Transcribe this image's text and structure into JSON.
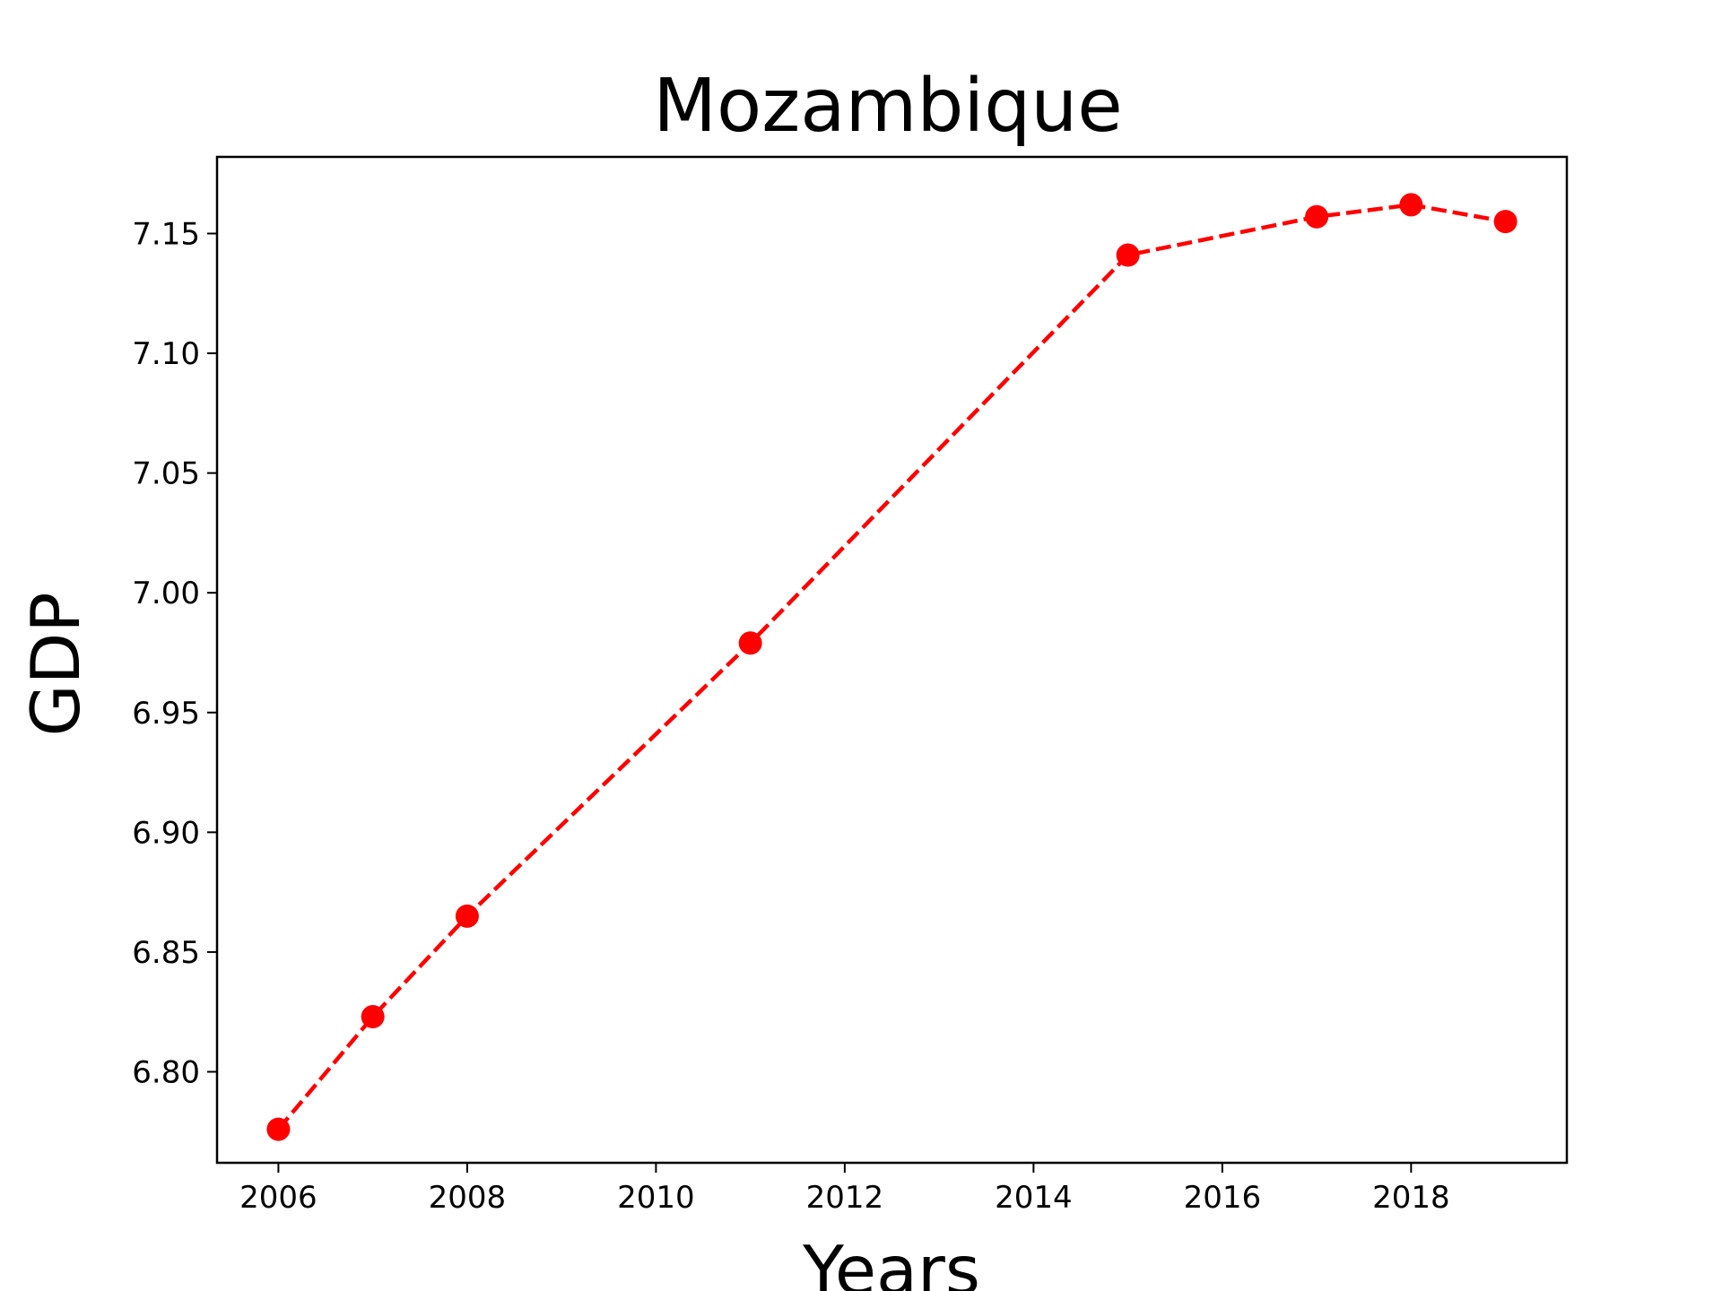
{
  "chart_data": {
    "type": "line",
    "title": "Mozambique",
    "xlabel": "Years",
    "ylabel": "GDP",
    "x": [
      2006,
      2007,
      2008,
      2011,
      2015,
      2017,
      2018,
      2019
    ],
    "series": [
      {
        "values": [
          6.776,
          6.823,
          6.865,
          6.979,
          7.141,
          7.157,
          7.162,
          7.155
        ],
        "color": "#ff0000",
        "line_style": "dashed",
        "marker": "circle"
      }
    ],
    "xlim": [
      2005.35,
      2019.65
    ],
    "ylim": [
      6.762,
      7.182
    ],
    "xticks": [
      2006,
      2008,
      2010,
      2012,
      2014,
      2016,
      2018
    ],
    "xtick_labels": [
      "2006",
      "2008",
      "2010",
      "2012",
      "2014",
      "2016",
      "2018"
    ],
    "yticks": [
      6.8,
      6.85,
      6.9,
      6.95,
      7.0,
      7.05,
      7.1,
      7.15
    ],
    "ytick_labels": [
      "6.80",
      "6.85",
      "6.90",
      "6.95",
      "7.00",
      "7.05",
      "7.10",
      "7.15"
    ],
    "grid": false,
    "legend": "none"
  }
}
